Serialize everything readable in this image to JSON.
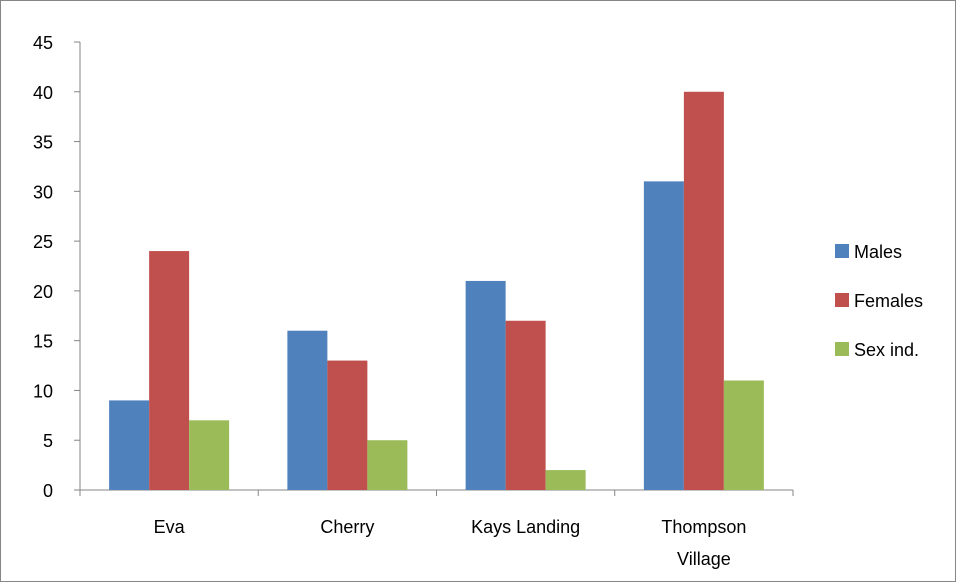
{
  "chart_data": {
    "type": "bar",
    "title": "",
    "xlabel": "",
    "ylabel": "",
    "categories": [
      "Eva",
      "Cherry",
      "Kays Landing",
      "Thompson Village"
    ],
    "category_label_lines": [
      [
        "Eva"
      ],
      [
        "Cherry"
      ],
      [
        "Kays Landing"
      ],
      [
        "Thompson",
        "Village"
      ]
    ],
    "series": [
      {
        "name": "Males",
        "color": "#4F81BD",
        "values": [
          9,
          16,
          21,
          31
        ]
      },
      {
        "name": "Females",
        "color": "#C0504D",
        "values": [
          24,
          13,
          17,
          40
        ]
      },
      {
        "name": "Sex ind.",
        "color": "#9BBB59",
        "values": [
          7,
          5,
          2,
          11
        ]
      }
    ],
    "ylim": [
      0,
      45
    ],
    "y_ticks": [
      0,
      5,
      10,
      15,
      20,
      25,
      30,
      35,
      40,
      45
    ],
    "grid": false,
    "legend_position": "right"
  }
}
